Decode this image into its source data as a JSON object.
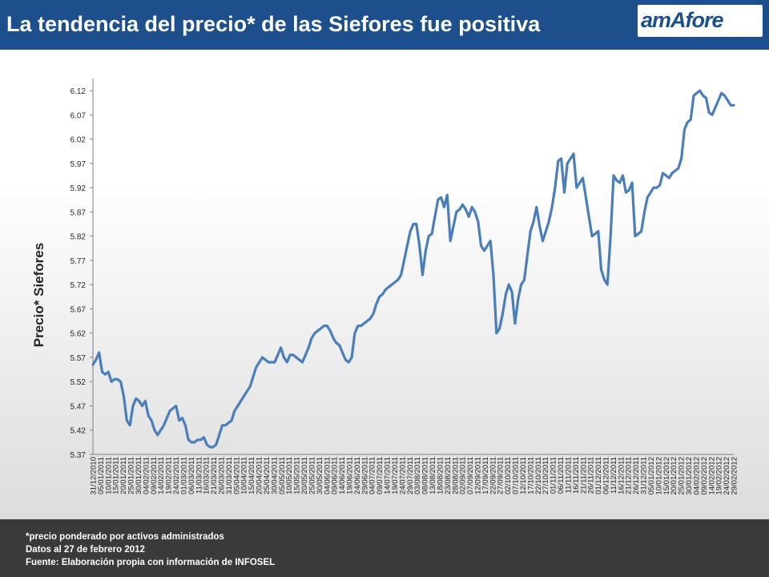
{
  "header": {
    "title": "La tendencia del precio* de las Siefores fue positiva",
    "logo_text": "amAfore"
  },
  "colors": {
    "header_bg": "#1c4f8c",
    "line": "#4a7ebb",
    "footer_bg": "#3a3a3a"
  },
  "chart_data": {
    "type": "line",
    "title": "",
    "xlabel": "",
    "ylabel": "Precio* Siefores",
    "ylim": [
      5.37,
      6.145
    ],
    "yticks": [
      "6.12",
      "6.07",
      "6.02",
      "5.97",
      "5.92",
      "5.87",
      "5.82",
      "5.77",
      "5.72",
      "5.67",
      "5.62",
      "5.57",
      "5.52",
      "5.47",
      "5.42",
      "5.37"
    ],
    "xticks": [
      "31/12/2010",
      "05/01/2011",
      "10/01/2011",
      "15/01/2011",
      "20/01/2011",
      "25/01/2011",
      "30/01/2011",
      "04/02/2011",
      "09/02/2011",
      "14/02/2011",
      "19/02/2011",
      "24/02/2011",
      "01/03/2011",
      "06/03/2011",
      "11/03/2011",
      "16/03/2011",
      "21/03/2011",
      "26/03/2011",
      "31/03/2011",
      "05/04/2011",
      "10/04/2011",
      "15/04/2011",
      "20/04/2011",
      "25/04/2011",
      "30/04/2011",
      "05/05/2011",
      "10/05/2011",
      "15/05/2011",
      "20/05/2011",
      "25/05/2011",
      "30/05/2011",
      "04/06/2011",
      "09/06/2011",
      "14/06/2011",
      "19/06/2011",
      "24/06/2011",
      "29/06/2011",
      "04/07/2011",
      "09/07/2011",
      "14/07/2011",
      "19/07/2011",
      "24/07/2011",
      "29/07/2011",
      "03/08/2011",
      "08/08/2011",
      "13/08/2011",
      "18/08/2011",
      "23/08/2011",
      "28/08/2011",
      "02/09/2011",
      "07/09/2011",
      "12/09/2011",
      "17/09/2011",
      "22/09/2011",
      "27/09/2011",
      "02/10/2011",
      "07/10/2011",
      "12/10/2011",
      "17/10/2011",
      "22/10/2011",
      "27/10/2011",
      "01/11/2011",
      "06/11/2011",
      "11/11/2011",
      "16/11/2011",
      "21/11/2011",
      "26/11/2011",
      "01/12/2011",
      "06/12/2011",
      "11/12/2011",
      "16/12/2011",
      "21/12/2011",
      "26/12/2011",
      "31/12/2011",
      "05/01/2012",
      "10/01/2012",
      "15/01/2012",
      "20/01/2012",
      "25/01/2012",
      "30/01/2012",
      "04/02/2012",
      "09/02/2012",
      "14/02/2012",
      "19/02/2012",
      "24/02/2012",
      "29/02/2012"
    ],
    "series": [
      {
        "values": [
          5.555,
          5.565,
          5.58,
          5.54,
          5.535,
          5.54,
          5.52,
          5.525,
          5.525,
          5.52,
          5.49,
          5.44,
          5.43,
          5.47,
          5.485,
          5.48,
          5.47,
          5.48,
          5.45,
          5.44,
          5.42,
          5.41,
          5.42,
          5.43,
          5.445,
          5.46,
          5.465,
          5.47,
          5.44,
          5.445,
          5.43,
          5.4,
          5.395,
          5.395,
          5.4,
          5.4,
          5.405,
          5.39,
          5.385,
          5.385,
          5.39,
          5.41,
          5.43,
          5.43,
          5.435,
          5.44,
          5.46,
          5.47,
          5.48,
          5.49,
          5.5,
          5.51,
          5.53,
          5.55,
          5.56,
          5.57,
          5.565,
          5.56,
          5.56,
          5.56,
          5.575,
          5.59,
          5.57,
          5.56,
          5.575,
          5.575,
          5.57,
          5.565,
          5.56,
          5.575,
          5.59,
          5.61,
          5.62,
          5.625,
          5.63,
          5.635,
          5.635,
          5.625,
          5.61,
          5.6,
          5.595,
          5.58,
          5.565,
          5.56,
          5.57,
          5.62,
          5.635,
          5.635,
          5.64,
          5.645,
          5.65,
          5.66,
          5.68,
          5.695,
          5.7,
          5.71,
          5.715,
          5.72,
          5.725,
          5.73,
          5.74,
          5.77,
          5.8,
          5.83,
          5.845,
          5.845,
          5.8,
          5.74,
          5.79,
          5.82,
          5.825,
          5.86,
          5.895,
          5.9,
          5.88,
          5.905,
          5.81,
          5.84,
          5.87,
          5.875,
          5.885,
          5.875,
          5.86,
          5.88,
          5.87,
          5.85,
          5.8,
          5.79,
          5.8,
          5.81,
          5.74,
          5.62,
          5.63,
          5.66,
          5.7,
          5.72,
          5.705,
          5.64,
          5.69,
          5.72,
          5.73,
          5.78,
          5.83,
          5.85,
          5.88,
          5.84,
          5.81,
          5.83,
          5.85,
          5.88,
          5.92,
          5.975,
          5.98,
          5.91,
          5.97,
          5.98,
          5.99,
          5.92,
          5.93,
          5.94,
          5.9,
          5.86,
          5.82,
          5.825,
          5.83,
          5.75,
          5.73,
          5.72,
          5.82,
          5.945,
          5.935,
          5.93,
          5.945,
          5.91,
          5.915,
          5.93,
          5.82,
          5.825,
          5.83,
          5.87,
          5.9,
          5.91,
          5.92,
          5.92,
          5.925,
          5.95,
          5.945,
          5.94,
          5.95,
          5.955,
          5.96,
          5.98,
          6.04,
          6.055,
          6.06,
          6.11,
          6.115,
          6.12,
          6.11,
          6.105,
          6.075,
          6.07,
          6.085,
          6.1,
          6.115,
          6.11,
          6.1,
          6.09,
          6.09
        ]
      }
    ]
  },
  "footer": {
    "note1": "*precio ponderado por activos administrados",
    "note2": "Datos al 27 de febrero 2012",
    "note3": "Fuente: Elaboración propia con información de INFOSEL"
  }
}
